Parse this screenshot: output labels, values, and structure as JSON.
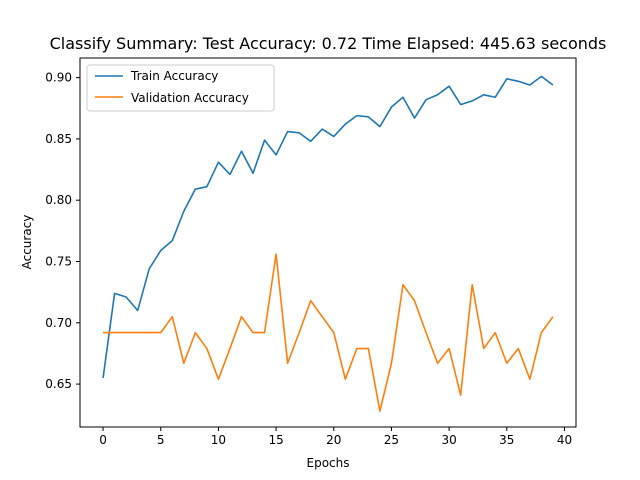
{
  "chart_data": {
    "type": "line",
    "title": "Classify Summary: Test Accuracy: 0.72 Time Elapsed: 445.63 seconds",
    "xlabel": "Epochs",
    "ylabel": "Accuracy",
    "xlim": [
      -2,
      41
    ],
    "ylim": [
      0.615,
      0.916
    ],
    "xticks": [
      0,
      5,
      10,
      15,
      20,
      25,
      30,
      35,
      40
    ],
    "yticks": [
      0.65,
      0.7,
      0.75,
      0.8,
      0.85,
      0.9
    ],
    "ytick_labels": [
      "0.65",
      "0.70",
      "0.75",
      "0.80",
      "0.85",
      "0.90"
    ],
    "grid": false,
    "legend": "top-left",
    "x": [
      0,
      1,
      2,
      3,
      4,
      5,
      6,
      7,
      8,
      9,
      10,
      11,
      12,
      13,
      14,
      15,
      16,
      17,
      18,
      19,
      20,
      21,
      22,
      23,
      24,
      25,
      26,
      27,
      28,
      29,
      30,
      31,
      32,
      33,
      34,
      35,
      36,
      37,
      38,
      39
    ],
    "series": [
      {
        "name": "Train Accuracy",
        "color": "#1f77b4",
        "values": [
          0.655,
          0.724,
          0.721,
          0.71,
          0.744,
          0.759,
          0.767,
          0.791,
          0.809,
          0.811,
          0.831,
          0.821,
          0.84,
          0.822,
          0.849,
          0.837,
          0.856,
          0.855,
          0.848,
          0.858,
          0.852,
          0.862,
          0.869,
          0.868,
          0.86,
          0.876,
          0.884,
          0.867,
          0.882,
          0.886,
          0.893,
          0.878,
          0.881,
          0.886,
          0.884,
          0.899,
          0.897,
          0.894,
          0.901,
          0.894
        ]
      },
      {
        "name": "Validation Accuracy",
        "color": "#ff7f0e",
        "values": [
          0.692,
          0.692,
          0.692,
          0.692,
          0.692,
          0.692,
          0.705,
          0.667,
          0.692,
          0.679,
          0.654,
          0.679,
          0.705,
          0.692,
          0.692,
          0.756,
          0.667,
          0.692,
          0.718,
          0.705,
          0.692,
          0.654,
          0.679,
          0.679,
          0.628,
          0.667,
          0.731,
          0.718,
          0.692,
          0.667,
          0.679,
          0.641,
          0.731,
          0.679,
          0.692,
          0.667,
          0.679,
          0.654,
          0.692,
          0.705
        ]
      }
    ]
  }
}
